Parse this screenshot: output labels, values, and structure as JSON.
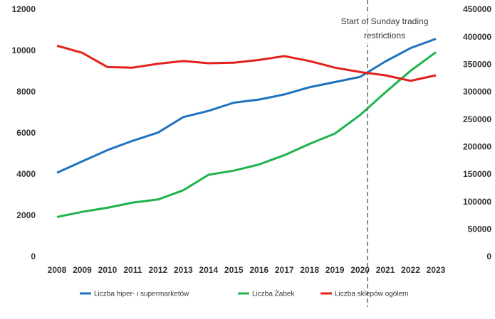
{
  "chart_data": {
    "type": "line",
    "categories": [
      "2008",
      "2009",
      "2010",
      "2011",
      "2012",
      "2013",
      "2014",
      "2015",
      "2016",
      "2017",
      "2018",
      "2019",
      "2020",
      "2021",
      "2022",
      "2023"
    ],
    "series": [
      {
        "name": "Liczba hiper- i supermarketów",
        "color": "#1f72c0",
        "values": [
          4100,
          4650,
          5200,
          5650,
          6050,
          6800,
          7100,
          7500,
          7650,
          7900,
          8250,
          8500,
          8750,
          9500,
          10150,
          10600
        ]
      },
      {
        "name": "Liczba Żabek",
        "color": "#1fb34b",
        "values": [
          1950,
          2200,
          2400,
          2650,
          2800,
          3250,
          4000,
          4200,
          4500,
          4950,
          5500,
          6000,
          6900,
          8000,
          9050,
          9950
        ]
      },
      {
        "name": "Liczba sklepów ogółem",
        "color": "#e3201b",
        "axis": "y2",
        "values": [
          385000,
          372000,
          346000,
          345000,
          352000,
          357000,
          353000,
          354000,
          359000,
          366000,
          357000,
          345000,
          337000,
          331000,
          321000,
          331000
        ]
      }
    ],
    "ylim": [
      0,
      12000
    ],
    "yticks": [
      0,
      2000,
      4000,
      6000,
      8000,
      10000,
      12000
    ],
    "y2lim": [
      0,
      450000
    ],
    "y2ticks": [
      0,
      50000,
      100000,
      150000,
      200000,
      250000,
      300000,
      350000,
      400000,
      450000
    ],
    "annotation": [
      "Start of Sunday trading",
      "restrictions"
    ],
    "legend": "bottom",
    "grid": false
  }
}
